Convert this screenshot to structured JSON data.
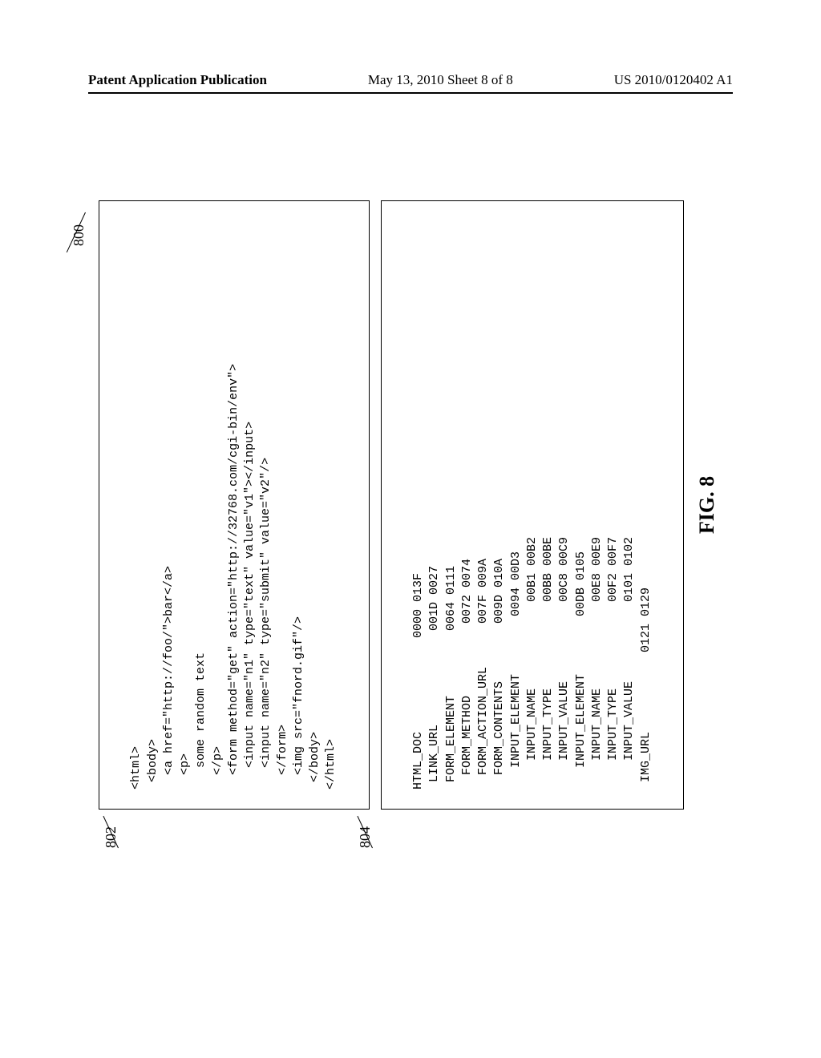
{
  "header": {
    "left": "Patent Application Publication",
    "center": "May 13, 2010  Sheet 8 of 8",
    "right": "US 2010/0120402 A1"
  },
  "refs": {
    "r800": "800",
    "r802": "802",
    "r804": "804"
  },
  "box802": {
    "l01": "<html>",
    "l02": " <body>",
    "l03": "  <a href=\"http://foo/\">bar</a>",
    "l04": "  <p>",
    "l05": "   some random text",
    "l06": "  </p>",
    "l07": "  <form method=\"get\" action=\"http://32768.com/cgi-bin/env\">",
    "l08": "   <input name=\"n1\" type=\"text\" value=\"v1\"></input>",
    "l09": "   <input name=\"n2\" type=\"submit\" value=\"v2\"/>",
    "l10": "  </form>",
    "l11": "  <img src=\"fnord.gif\"/>",
    "l12": " </body>",
    "l13": "</html>"
  },
  "box804": {
    "l01": "HTML_DOC             0000 013F",
    "l02": " LINK_URL             001D 0027",
    "l03": " FORM_ELEMENT         0064 0111",
    "l04": "  FORM_METHOD          0072 0074",
    "l05": "  FORM_ACTION_URL      007F 009A",
    "l06": "  FORM_CONTENTS        009D 010A",
    "l07": "   INPUT_ELEMENT        0094 00D3",
    "l08": "    INPUT_NAME            00B1 00B2",
    "l09": "    INPUT_TYPE            00BB 00BE",
    "l10": "    INPUT_VALUE           00C8 00C9",
    "l11": "   INPUT_ELEMENT        00DB 0105",
    "l12": "    INPUT_NAME            00E8 00E9",
    "l13": "    INPUT_TYPE            00F2 00F7",
    "l14": "    INPUT_VALUE           0101 0102",
    "l15": " IMG_URL           0121 0129"
  },
  "caption": "FIG. 8",
  "colors": {
    "border": "#000000",
    "background": "#ffffff",
    "text": "#000000"
  }
}
